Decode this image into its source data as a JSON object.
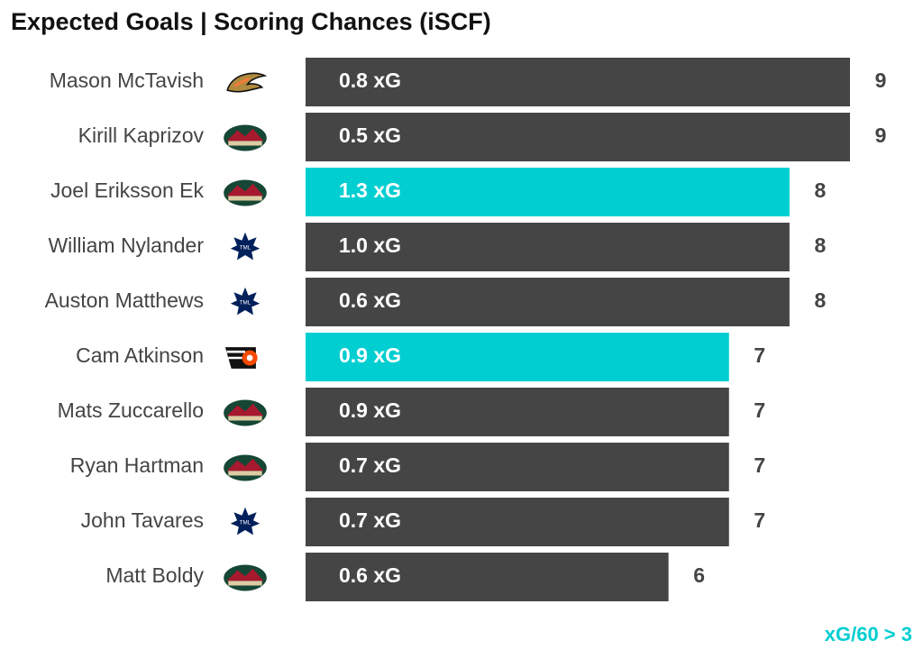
{
  "chart_data": {
    "type": "bar",
    "orientation": "horizontal",
    "title": "Expected Goals | Scoring Chances (iSCF)",
    "categories": [
      "Mason McTavish",
      "Kirill Kaprizov",
      "Joel Eriksson Ek",
      "William Nylander",
      "Auston Matthews",
      "Cam Atkinson",
      "Mats Zuccarello",
      "Ryan Hartman",
      "John Tavares",
      "Matt Boldy"
    ],
    "values": [
      9,
      9,
      8,
      8,
      8,
      7,
      7,
      7,
      7,
      6
    ],
    "xg_labels": [
      "0.8 xG",
      "0.5 xG",
      "1.3 xG",
      "1.0 xG",
      "0.6 xG",
      "0.9 xG",
      "0.9 xG",
      "0.7 xG",
      "0.7 xG",
      "0.6 xG"
    ],
    "colors": [
      "#454545",
      "#454545",
      "#00ced1",
      "#454545",
      "#454545",
      "#00ced1",
      "#454545",
      "#454545",
      "#454545",
      "#454545"
    ],
    "annotation": "xG/60 > 3",
    "annotation_color": "#00ced1"
  }
}
